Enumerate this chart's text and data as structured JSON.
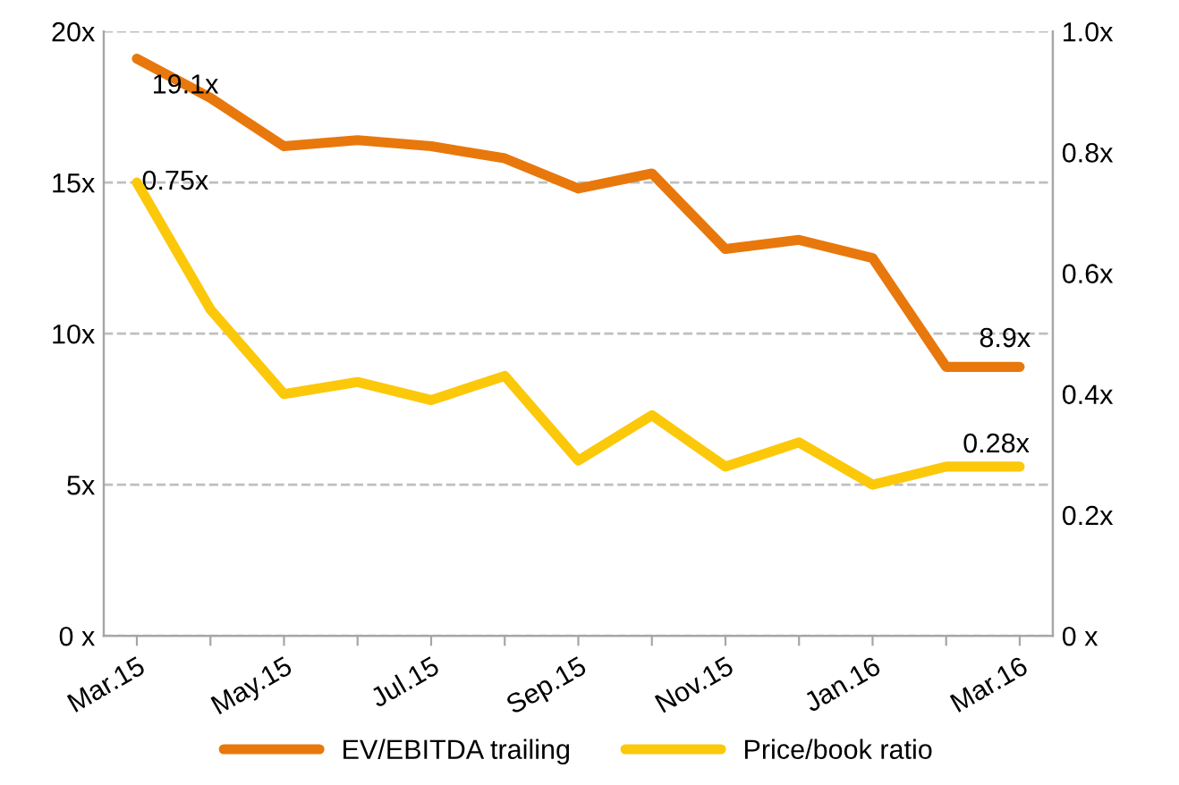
{
  "chart_data": {
    "type": "line",
    "categories": [
      "Mar.15",
      null,
      "May.15",
      null,
      "Jul.15",
      null,
      "Sep.15",
      null,
      "Nov.15",
      null,
      "Jan.16",
      null,
      "Mar.16"
    ],
    "series": [
      {
        "name": "EV/EBITDA trailing",
        "color": "#e8780c",
        "values": [
          19.1,
          17.8,
          16.2,
          16.4,
          16.2,
          15.8,
          14.8,
          15.3,
          12.8,
          13.1,
          12.5,
          8.9,
          8.9
        ]
      },
      {
        "name": "Price/book ratio",
        "color": "#fcc80a",
        "axis": "y2",
        "values": [
          0.75,
          0.54,
          0.4,
          0.42,
          0.39,
          0.43,
          0.29,
          0.365,
          0.28,
          0.32,
          0.25,
          0.28,
          0.28
        ]
      }
    ],
    "ylim": [
      0,
      20
    ],
    "yticks": [
      {
        "value": 0,
        "label": "0 x"
      },
      {
        "value": 5,
        "label": "5x"
      },
      {
        "value": 10,
        "label": "10x"
      },
      {
        "value": 15,
        "label": "15x"
      },
      {
        "value": 20,
        "label": "20x"
      }
    ],
    "y2lim": [
      0,
      1
    ],
    "y2ticks": [
      {
        "value": 0,
        "label": "0 x"
      },
      {
        "value": 0.2,
        "label": "0.2x"
      },
      {
        "value": 0.4,
        "label": "0.4x"
      },
      {
        "value": 0.6,
        "label": "0.6x"
      },
      {
        "value": 0.8,
        "label": "0.8x"
      },
      {
        "value": 1.0,
        "label": "1.0x"
      }
    ],
    "annotations": [
      {
        "text": "19.1x",
        "x": "Mar.15",
        "y": 19.1
      },
      "0.75x",
      {
        "text": "8.9x",
        "x": "Mar.16",
        "y": 8.9
      },
      "0.28x"
    ],
    "grid": "y",
    "legend": "bottom",
    "marker": "none",
    "line_style": "solid"
  }
}
